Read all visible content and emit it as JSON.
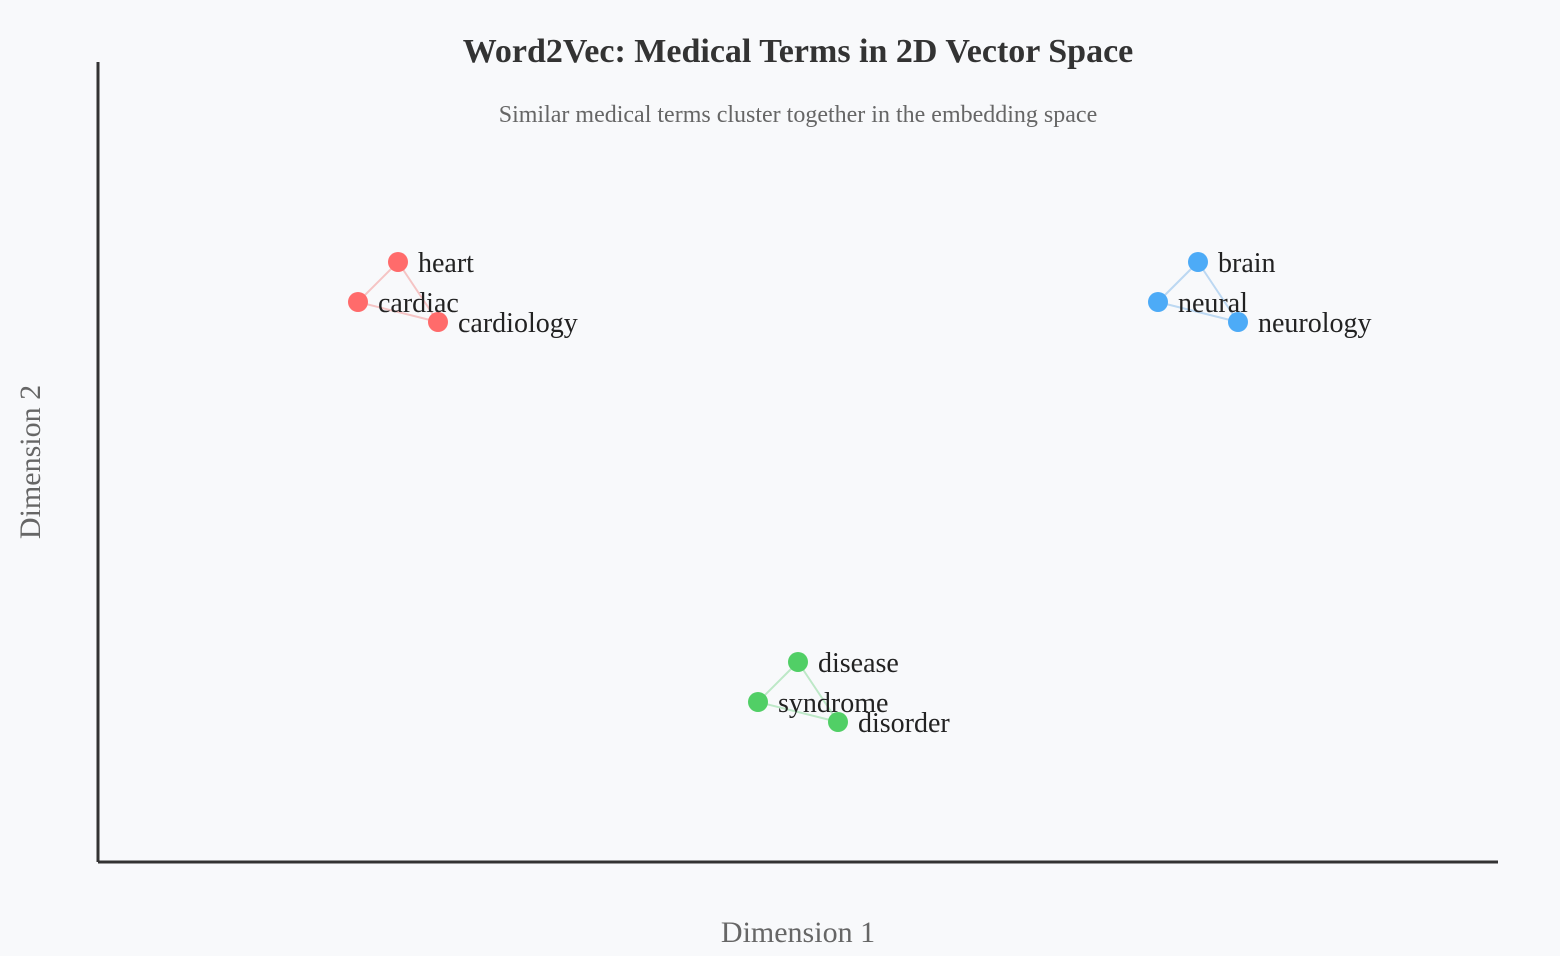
{
  "chart_data": {
    "type": "scatter",
    "title": "Word2Vec: Medical Terms in 2D Vector Space",
    "subtitle": "Similar medical terms cluster together in the embedding space",
    "xlabel": "Dimension 1",
    "ylabel": "Dimension 2",
    "xlim": [
      0,
      1400
    ],
    "ylim": [
      0,
      800
    ],
    "grid": false,
    "axes": [
      "left",
      "bottom"
    ],
    "series": [
      {
        "color": "#ff6b6b",
        "link_color": "#f5c4c4",
        "points": [
          {
            "label": "heart",
            "x": 300,
            "y": 600
          },
          {
            "label": "cardiac",
            "x": 260,
            "y": 560
          },
          {
            "label": "cardiology",
            "x": 340,
            "y": 540
          }
        ]
      },
      {
        "color": "#4dabf7",
        "link_color": "#bcd8f2",
        "points": [
          {
            "label": "brain",
            "x": 1100,
            "y": 600
          },
          {
            "label": "neural",
            "x": 1060,
            "y": 560
          },
          {
            "label": "neurology",
            "x": 1140,
            "y": 540
          }
        ]
      },
      {
        "color": "#51cf66",
        "link_color": "#bde8c7",
        "points": [
          {
            "label": "disease",
            "x": 700,
            "y": 200
          },
          {
            "label": "syndrome",
            "x": 660,
            "y": 160
          },
          {
            "label": "disorder",
            "x": 740,
            "y": 140
          }
        ]
      }
    ]
  }
}
